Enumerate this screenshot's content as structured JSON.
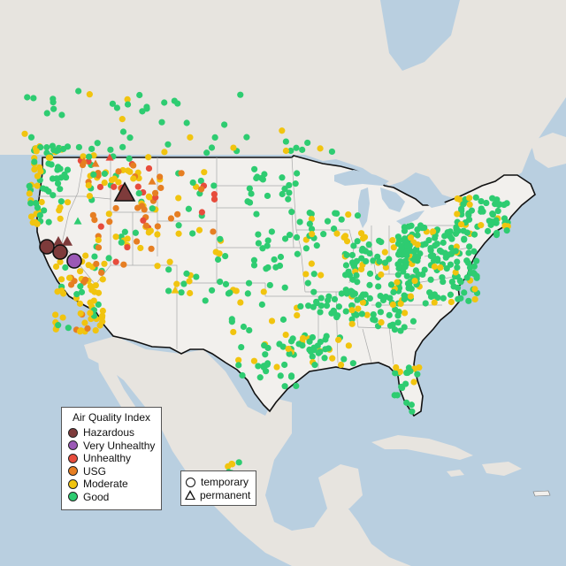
{
  "legend": {
    "title": "Air Quality Index",
    "categories": [
      {
        "label": "Hazardous",
        "color": "#7e3b3b"
      },
      {
        "label": "Very Unhealthy",
        "color": "#9b59b6"
      },
      {
        "label": "Unhealthy",
        "color": "#e74c3c"
      },
      {
        "label": "USG",
        "color": "#e67e22"
      },
      {
        "label": "Moderate",
        "color": "#f1c40f"
      },
      {
        "label": "Good",
        "color": "#2ecc71"
      }
    ]
  },
  "shape_legend": {
    "temporary": "temporary",
    "permanent": "permanent"
  },
  "colors": {
    "water": "#b9cfe0",
    "land": "#e9e6e1",
    "usa": "#f2f0ed",
    "border": "#111111",
    "state_lines": "#a5a5a5"
  }
}
